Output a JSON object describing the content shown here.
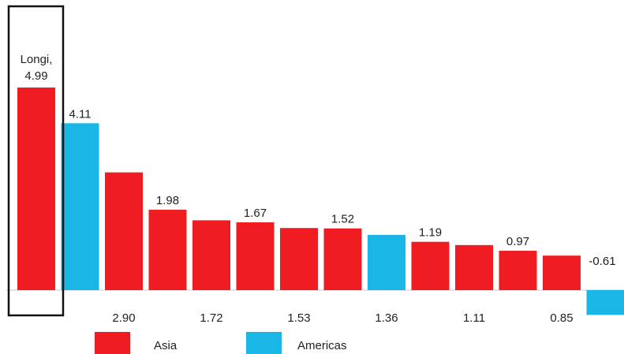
{
  "chart_data": {
    "type": "bar",
    "values": [
      4.99,
      4.11,
      2.9,
      1.98,
      1.72,
      1.67,
      1.53,
      1.52,
      1.36,
      1.19,
      1.11,
      0.97,
      0.85,
      -0.61
    ],
    "value_labels": [
      "4.99",
      "4.11",
      "2.90",
      "1.98",
      "1.72",
      "1.67",
      "1.53",
      "1.52",
      "1.36",
      "1.19",
      "1.11",
      "0.97",
      "0.85",
      "-0.61"
    ],
    "regions": [
      "Asia",
      "Americas",
      "Asia",
      "Asia",
      "Asia",
      "Asia",
      "Asia",
      "Asia",
      "Americas",
      "Asia",
      "Asia",
      "Asia",
      "Asia",
      "Americas"
    ],
    "label_position": [
      "above",
      "above",
      "below",
      "above",
      "below",
      "above",
      "below",
      "above",
      "below",
      "above",
      "below",
      "above",
      "below",
      "above"
    ],
    "highlight": {
      "index": 0,
      "label_line1": "Longi,",
      "label_line2": "4.99"
    },
    "legend": [
      {
        "name": "Asia",
        "color": "#ef1c22"
      },
      {
        "name": "Americas",
        "color": "#1ab7e6"
      }
    ],
    "legend_position": "bottom",
    "grid": false,
    "ylim": [
      -0.61,
      4.99
    ]
  }
}
